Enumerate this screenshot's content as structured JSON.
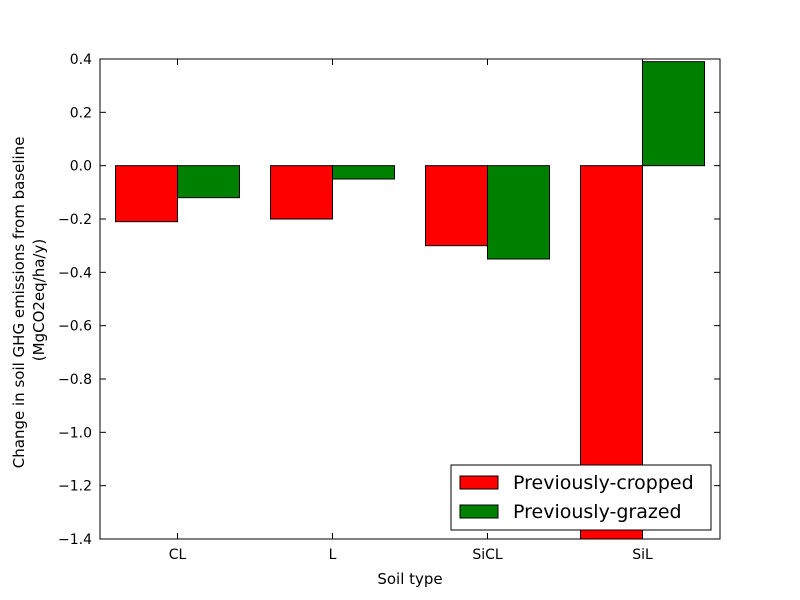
{
  "chart_data": {
    "type": "bar",
    "xlabel": "Soil type",
    "ylabel_lines": [
      "Change in soil GHG emissions from baseline",
      "(MgCO2eq/ha/y)"
    ],
    "categories": [
      "CL",
      "L",
      "SiCL",
      "SiL"
    ],
    "ylim": [
      -1.4,
      0.4
    ],
    "yticks": [
      -1.4,
      -1.2,
      -1.0,
      -0.8,
      -0.6,
      -0.4,
      -0.2,
      0.0,
      0.2,
      0.4
    ],
    "ytick_labels": [
      "−1.4",
      "−1.2",
      "−1.0",
      "−0.8",
      "−0.6",
      "−0.4",
      "−0.2",
      "0.0",
      "0.2",
      "0.4"
    ],
    "series": [
      {
        "name": "Previously-cropped",
        "color": "#ff0000",
        "values": [
          -0.21,
          -0.2,
          -0.3,
          -1.4
        ]
      },
      {
        "name": "Previously-grazed",
        "color": "#008000",
        "values": [
          -0.12,
          -0.05,
          -0.35,
          0.39
        ]
      }
    ],
    "legend_position": "lower-right",
    "grid": false
  }
}
